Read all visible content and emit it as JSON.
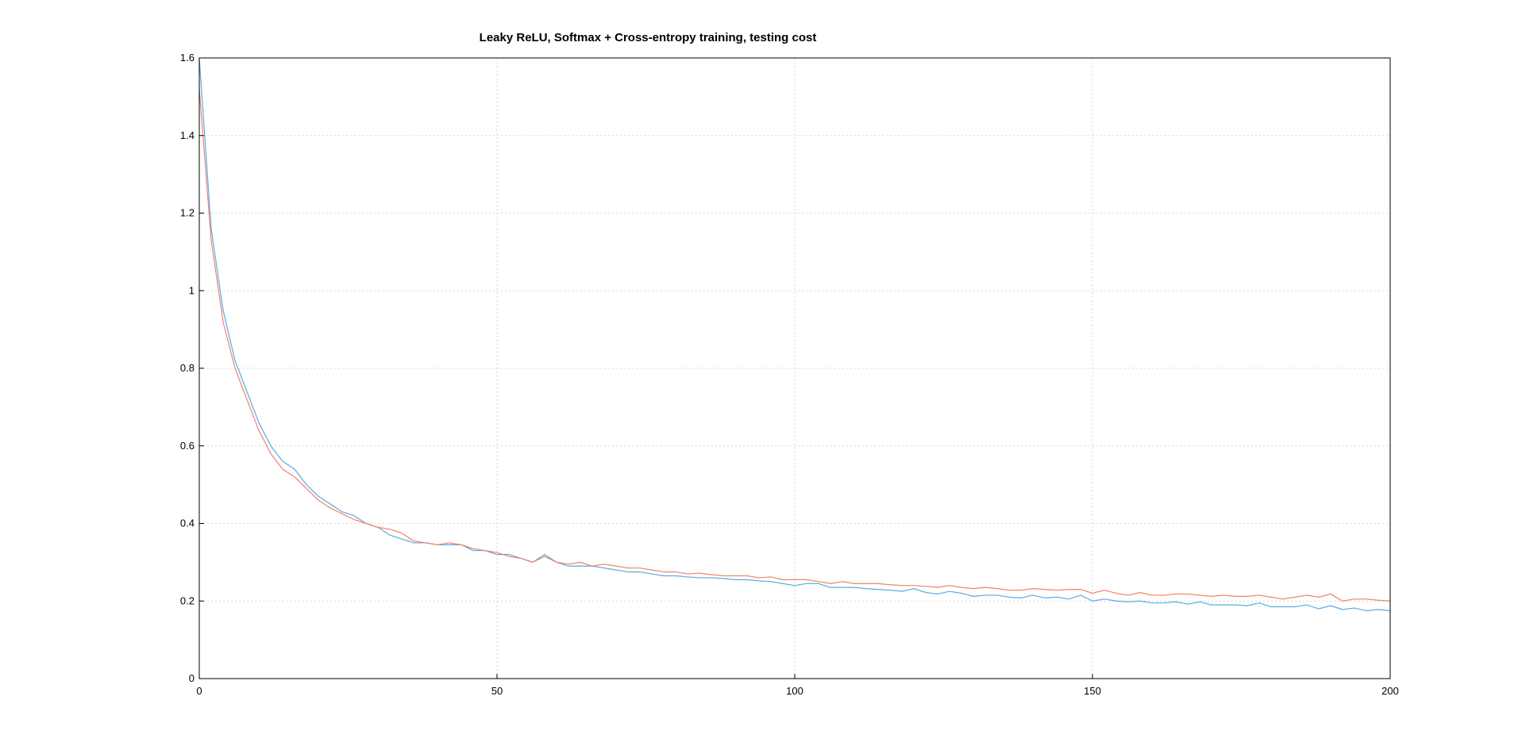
{
  "chart_data": {
    "type": "line",
    "title": "Leaky ReLU, Softmax + Cross-entropy training, testing cost",
    "xlabel": "",
    "ylabel": "",
    "xlim": [
      0,
      200
    ],
    "ylim": [
      0,
      1.6
    ],
    "xticks": [
      0,
      50,
      100,
      150,
      200
    ],
    "yticks": [
      0,
      0.2,
      0.4,
      0.6,
      0.8,
      1,
      1.2,
      1.4,
      1.6
    ],
    "xtick_labels": [
      "0",
      "50",
      "100",
      "150",
      "200"
    ],
    "ytick_labels": [
      "0",
      "0.2",
      "0.4",
      "0.6",
      "0.8",
      "1",
      "1.2",
      "1.4",
      "1.6"
    ],
    "grid": true,
    "legend": "none",
    "series": [
      {
        "color": "#5aaae6",
        "x": [
          0,
          2,
          4,
          6,
          8,
          10,
          12,
          14,
          16,
          18,
          20,
          22,
          24,
          26,
          28,
          30,
          32,
          34,
          36,
          38,
          40,
          42,
          44,
          46,
          48,
          50,
          52,
          54,
          56,
          58,
          60,
          62,
          64,
          66,
          68,
          70,
          72,
          74,
          76,
          78,
          80,
          82,
          84,
          86,
          88,
          90,
          92,
          94,
          96,
          98,
          100,
          102,
          104,
          106,
          108,
          110,
          112,
          114,
          116,
          118,
          120,
          122,
          124,
          126,
          128,
          130,
          132,
          134,
          136,
          138,
          140,
          142,
          144,
          146,
          148,
          150,
          152,
          154,
          156,
          158,
          160,
          162,
          164,
          166,
          168,
          170,
          172,
          174,
          176,
          178,
          180,
          182,
          184,
          186,
          188,
          190,
          192,
          194,
          196,
          198,
          200
        ],
        "y": [
          1.6,
          1.16,
          0.95,
          0.82,
          0.74,
          0.66,
          0.6,
          0.56,
          0.54,
          0.5,
          0.47,
          0.45,
          0.43,
          0.42,
          0.4,
          0.39,
          0.37,
          0.36,
          0.35,
          0.35,
          0.345,
          0.345,
          0.345,
          0.33,
          0.33,
          0.32,
          0.32,
          0.31,
          0.3,
          0.32,
          0.3,
          0.29,
          0.29,
          0.29,
          0.285,
          0.28,
          0.275,
          0.275,
          0.27,
          0.265,
          0.265,
          0.262,
          0.26,
          0.26,
          0.258,
          0.255,
          0.255,
          0.252,
          0.25,
          0.245,
          0.24,
          0.245,
          0.245,
          0.235,
          0.235,
          0.235,
          0.232,
          0.23,
          0.228,
          0.225,
          0.232,
          0.222,
          0.218,
          0.225,
          0.22,
          0.212,
          0.215,
          0.215,
          0.21,
          0.208,
          0.215,
          0.208,
          0.21,
          0.205,
          0.215,
          0.2,
          0.205,
          0.2,
          0.198,
          0.2,
          0.195,
          0.195,
          0.198,
          0.192,
          0.198,
          0.19,
          0.19,
          0.19,
          0.188,
          0.195,
          0.185,
          0.185,
          0.185,
          0.19,
          0.18,
          0.188,
          0.178,
          0.182,
          0.175,
          0.178,
          0.175
        ]
      },
      {
        "color": "#f0826a",
        "x": [
          0,
          2,
          4,
          6,
          8,
          10,
          12,
          14,
          16,
          18,
          20,
          22,
          24,
          26,
          28,
          30,
          32,
          34,
          36,
          38,
          40,
          42,
          44,
          46,
          48,
          50,
          52,
          54,
          56,
          58,
          60,
          62,
          64,
          66,
          68,
          70,
          72,
          74,
          76,
          78,
          80,
          82,
          84,
          86,
          88,
          90,
          92,
          94,
          96,
          98,
          100,
          102,
          104,
          106,
          108,
          110,
          112,
          114,
          116,
          118,
          120,
          122,
          124,
          126,
          128,
          130,
          132,
          134,
          136,
          138,
          140,
          142,
          144,
          146,
          148,
          150,
          152,
          154,
          156,
          158,
          160,
          162,
          164,
          166,
          168,
          170,
          172,
          174,
          176,
          178,
          180,
          182,
          184,
          186,
          188,
          190,
          192,
          194,
          196,
          198,
          200
        ],
        "y": [
          1.52,
          1.13,
          0.92,
          0.8,
          0.72,
          0.64,
          0.58,
          0.54,
          0.52,
          0.49,
          0.46,
          0.44,
          0.425,
          0.41,
          0.4,
          0.39,
          0.385,
          0.375,
          0.355,
          0.35,
          0.345,
          0.35,
          0.345,
          0.335,
          0.33,
          0.325,
          0.315,
          0.31,
          0.3,
          0.315,
          0.3,
          0.295,
          0.3,
          0.29,
          0.295,
          0.29,
          0.285,
          0.285,
          0.28,
          0.275,
          0.275,
          0.27,
          0.272,
          0.268,
          0.265,
          0.265,
          0.265,
          0.26,
          0.262,
          0.255,
          0.255,
          0.255,
          0.25,
          0.245,
          0.25,
          0.245,
          0.245,
          0.245,
          0.242,
          0.24,
          0.24,
          0.238,
          0.235,
          0.24,
          0.235,
          0.232,
          0.235,
          0.232,
          0.228,
          0.228,
          0.232,
          0.23,
          0.228,
          0.23,
          0.23,
          0.22,
          0.228,
          0.22,
          0.215,
          0.222,
          0.215,
          0.215,
          0.218,
          0.218,
          0.215,
          0.212,
          0.215,
          0.212,
          0.212,
          0.215,
          0.21,
          0.205,
          0.21,
          0.215,
          0.21,
          0.218,
          0.2,
          0.205,
          0.205,
          0.202,
          0.2
        ]
      }
    ]
  }
}
